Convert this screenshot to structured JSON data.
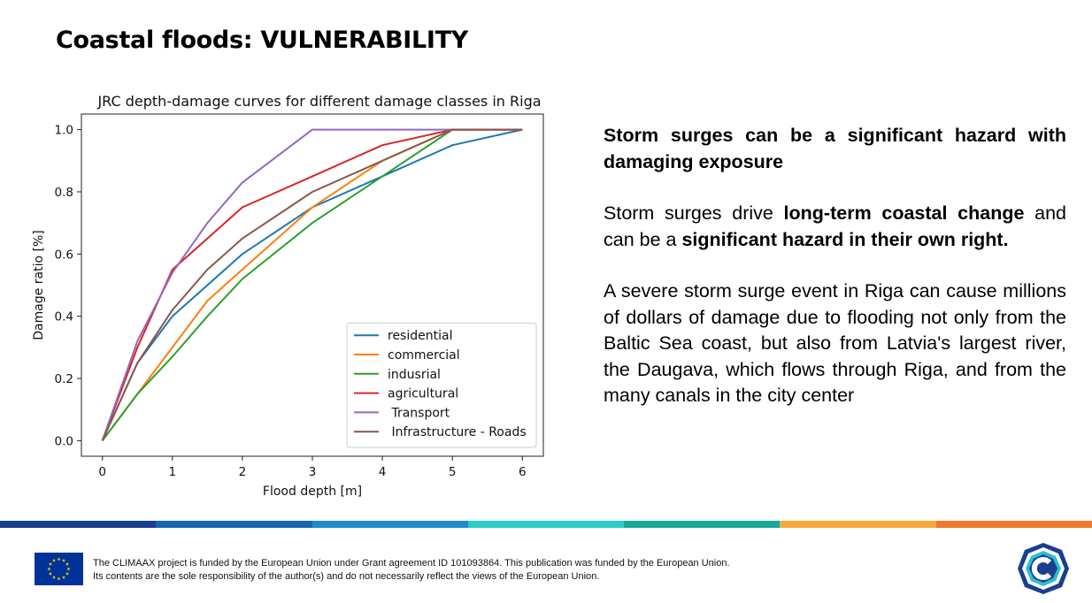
{
  "slide": {
    "title": "Coastal floods: VULNERABILITY"
  },
  "chart_data": {
    "type": "line",
    "title": "JRC depth-damage curves for different damage classes in Riga",
    "xlabel": "Flood depth [m]",
    "ylabel": "Damage ratio [%]",
    "xlim": [
      -0.3,
      6.3
    ],
    "ylim": [
      -0.05,
      1.05
    ],
    "xticks": [
      0,
      1,
      2,
      3,
      4,
      5,
      6
    ],
    "yticks": [
      0.0,
      0.2,
      0.4,
      0.6,
      0.8,
      1.0
    ],
    "xtick_labels": [
      "0",
      "1",
      "2",
      "3",
      "4",
      "5",
      "6"
    ],
    "ytick_labels": [
      "0.0",
      "0.2",
      "0.4",
      "0.6",
      "0.8",
      "1.0"
    ],
    "grid": false,
    "legend_position": "lower-right",
    "x": [
      0,
      0.5,
      1,
      1.5,
      2,
      3,
      4,
      5,
      6
    ],
    "series": [
      {
        "name": "residential",
        "color": "#1f77b4",
        "values": [
          0,
          0.25,
          0.4,
          0.5,
          0.6,
          0.75,
          0.85,
          0.95,
          1.0
        ]
      },
      {
        "name": "commercial",
        "color": "#ff7f0e",
        "values": [
          0,
          0.15,
          0.3,
          0.45,
          0.55,
          0.75,
          0.9,
          1.0,
          1.0
        ]
      },
      {
        "name": "indusrial",
        "color": "#2ca02c",
        "values": [
          0,
          0.15,
          0.27,
          0.4,
          0.52,
          0.7,
          0.85,
          1.0,
          1.0
        ]
      },
      {
        "name": "agricultural",
        "color": "#d62728",
        "values": [
          0,
          0.3,
          0.55,
          0.65,
          0.75,
          0.85,
          0.95,
          1.0,
          1.0
        ]
      },
      {
        "name": " Transport",
        "color": "#9467bd",
        "values": [
          0,
          0.32,
          0.54,
          0.7,
          0.83,
          1.0,
          1.0,
          1.0,
          1.0
        ]
      },
      {
        "name": " Infrastructure - Roads",
        "color": "#8c564b",
        "values": [
          0,
          0.25,
          0.42,
          0.55,
          0.65,
          0.8,
          0.9,
          1.0,
          1.0
        ]
      }
    ]
  },
  "text_panel": {
    "lead": "Storm surges can be a significant hazard with damaging exposure",
    "p2": {
      "a": "Storm surges drive ",
      "b": "long-term coastal change",
      "c": " and can be a ",
      "d": "significant hazard in their own right."
    },
    "p3": "A severe storm surge event in Riga can cause millions of dollars of damage due to flooding not only from the Baltic Sea coast, but also from Latvia's largest river, the Daugava, which flows through Riga, and from the many canals in the city center"
  },
  "footer": {
    "band_colors": [
      "#1b3f8f",
      "#1666b0",
      "#1e8ccc",
      "#2dccc4",
      "#1aa89a",
      "#f6a93b",
      "#f07a2a"
    ],
    "disclaimer_line1": "The CLIMAAX project is funded by the European Union under Grant agreement ID 101093864. This publication was funded by the European Union.",
    "disclaimer_line2": "Its contents are the sole responsibility of the author(s) and do not necessarily reflect the views of the European Union.",
    "eu_flag_icon": "eu-flag-icon",
    "logo_icon": "climaax-logo-icon"
  }
}
